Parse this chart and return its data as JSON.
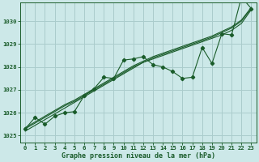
{
  "xlabel": "Graphe pression niveau de la mer (hPa)",
  "background_color": "#cce8e8",
  "grid_color": "#aacccc",
  "line_color": "#1a5c2a",
  "xlim": [
    -0.5,
    23.5
  ],
  "ylim": [
    1024.7,
    1030.8
  ],
  "yticks": [
    1025,
    1026,
    1027,
    1028,
    1029,
    1030
  ],
  "xticks": [
    0,
    1,
    2,
    3,
    4,
    5,
    6,
    7,
    8,
    9,
    10,
    11,
    12,
    13,
    14,
    15,
    16,
    17,
    18,
    19,
    20,
    21,
    22,
    23
  ],
  "linear1": [
    1025.2,
    1025.45,
    1025.7,
    1025.95,
    1026.2,
    1026.45,
    1026.7,
    1026.95,
    1027.2,
    1027.45,
    1027.7,
    1027.95,
    1028.2,
    1028.35,
    1028.5,
    1028.65,
    1028.8,
    1028.95,
    1029.1,
    1029.25,
    1029.4,
    1029.6,
    1029.9,
    1030.5
  ],
  "linear2": [
    1025.3,
    1025.55,
    1025.8,
    1026.05,
    1026.3,
    1026.5,
    1026.75,
    1027.0,
    1027.25,
    1027.5,
    1027.75,
    1028.0,
    1028.2,
    1028.4,
    1028.55,
    1028.7,
    1028.85,
    1029.0,
    1029.15,
    1029.3,
    1029.5,
    1029.7,
    1030.0,
    1030.55
  ],
  "linear3": [
    1025.35,
    1025.6,
    1025.85,
    1026.1,
    1026.35,
    1026.55,
    1026.8,
    1027.05,
    1027.3,
    1027.55,
    1027.8,
    1028.05,
    1028.25,
    1028.45,
    1028.6,
    1028.75,
    1028.9,
    1029.05,
    1029.2,
    1029.35,
    1029.55,
    1029.75,
    1030.05,
    1030.6
  ],
  "wavy": [
    1025.3,
    1025.8,
    1025.5,
    1025.85,
    1026.0,
    1026.05,
    1026.75,
    1027.05,
    1027.55,
    1027.5,
    1028.3,
    1028.35,
    1028.45,
    1028.1,
    1028.0,
    1027.8,
    1027.5,
    1027.55,
    1028.85,
    1028.15,
    1029.45,
    1029.4,
    1031.05,
    1030.55
  ],
  "xlabel_fontsize": 6.0,
  "tick_fontsize": 5.2
}
